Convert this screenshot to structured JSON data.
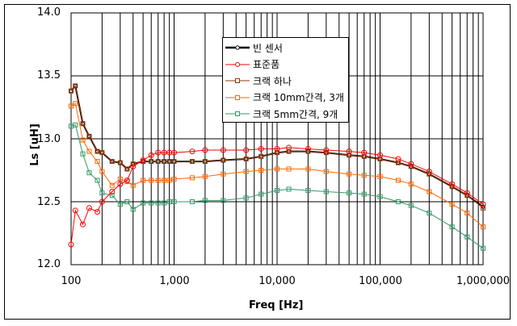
{
  "chart_data": {
    "type": "line",
    "title": "",
    "xlabel": "Freq [Hz]",
    "ylabel": "Ls [uH]",
    "xscale": "log",
    "xlim": [
      100,
      1000000
    ],
    "ylim": [
      12.0,
      14.0
    ],
    "xticks": [
      "100",
      "1,000",
      "10,000",
      "100,000",
      "1,000,000"
    ],
    "yticks": [
      "12.0",
      "12.5",
      "13.0",
      "13.5",
      "14.0"
    ],
    "grid": true,
    "legend_position": "top-center (inside plot)",
    "x": [
      100,
      110,
      130,
      150,
      180,
      200,
      250,
      300,
      350,
      400,
      500,
      600,
      700,
      800,
      900,
      1000,
      1500,
      2000,
      3000,
      5000,
      7000,
      10000,
      13000,
      20000,
      30000,
      50000,
      70000,
      100000,
      150000,
      200000,
      300000,
      500000,
      700000,
      1000000
    ],
    "series": [
      {
        "name": "빈 센서",
        "color": "#000000",
        "marker": "diamond",
        "values": [
          13.38,
          13.42,
          13.12,
          13.02,
          12.9,
          12.89,
          12.82,
          12.81,
          12.76,
          12.8,
          12.82,
          12.82,
          12.82,
          12.82,
          12.82,
          12.82,
          12.82,
          12.82,
          12.83,
          12.84,
          12.86,
          12.89,
          12.9,
          12.9,
          12.89,
          12.87,
          12.86,
          12.84,
          12.81,
          12.78,
          12.72,
          12.62,
          12.55,
          12.46
        ]
      },
      {
        "name": "표준품",
        "color": "#ff0000",
        "marker": "circle",
        "values": [
          12.16,
          12.43,
          12.32,
          12.45,
          12.42,
          12.5,
          12.58,
          12.64,
          12.67,
          12.78,
          12.83,
          12.87,
          12.89,
          12.89,
          12.89,
          12.89,
          12.9,
          12.91,
          12.91,
          12.91,
          12.92,
          12.92,
          12.93,
          12.92,
          12.91,
          12.9,
          12.89,
          12.87,
          12.84,
          12.8,
          12.74,
          12.64,
          12.57,
          12.48
        ]
      },
      {
        "name": "크랙 하나",
        "color": "#993300",
        "marker": "square",
        "values": [
          13.38,
          13.42,
          13.12,
          13.02,
          12.9,
          12.89,
          12.82,
          12.81,
          12.76,
          12.8,
          12.82,
          12.82,
          12.82,
          12.82,
          12.82,
          12.82,
          12.82,
          12.82,
          12.83,
          12.84,
          12.86,
          12.89,
          12.9,
          12.9,
          12.89,
          12.87,
          12.86,
          12.84,
          12.81,
          12.78,
          12.72,
          12.62,
          12.55,
          12.45
        ]
      },
      {
        "name": "크랙 10mm간격, 3개",
        "color": "#ff6600",
        "marker": "square",
        "values": [
          13.26,
          13.28,
          12.99,
          12.9,
          12.82,
          12.74,
          12.63,
          12.68,
          12.66,
          12.63,
          12.67,
          12.67,
          12.67,
          12.67,
          12.67,
          12.68,
          12.69,
          12.7,
          12.72,
          12.74,
          12.75,
          12.76,
          12.76,
          12.76,
          12.74,
          12.72,
          12.71,
          12.7,
          12.67,
          12.64,
          12.58,
          12.48,
          12.41,
          12.3
        ]
      },
      {
        "name": "크랙 5mm간격, 9개",
        "color": "#339966",
        "marker": "square",
        "values": [
          13.1,
          13.11,
          12.88,
          12.73,
          12.67,
          12.57,
          12.55,
          12.48,
          12.5,
          12.44,
          12.49,
          12.49,
          12.49,
          12.49,
          12.5,
          12.5,
          12.5,
          12.51,
          12.51,
          12.53,
          12.56,
          12.59,
          12.6,
          12.59,
          12.58,
          12.57,
          12.56,
          12.54,
          12.5,
          12.47,
          12.41,
          12.3,
          12.22,
          12.13
        ]
      }
    ]
  },
  "axes": {
    "xlabel": "Freq [Hz]",
    "ylabel": "Ls [uH]",
    "yticks": [
      {
        "label": "14.0",
        "value": 14.0
      },
      {
        "label": "13.5",
        "value": 13.5
      },
      {
        "label": "13.0",
        "value": 13.0
      },
      {
        "label": "12.5",
        "value": 12.5
      },
      {
        "label": "12.0",
        "value": 12.0
      }
    ],
    "xticks": [
      {
        "label": "100",
        "value": 100
      },
      {
        "label": "1,000",
        "value": 1000
      },
      {
        "label": "10,000",
        "value": 10000
      },
      {
        "label": "100,000",
        "value": 100000
      },
      {
        "label": "1,000,000",
        "value": 1000000
      }
    ]
  },
  "legend": {
    "items": [
      {
        "label": "빈 센서",
        "color": "#000000"
      },
      {
        "label": "표준품",
        "color": "#ff0000"
      },
      {
        "label": "크랙 하나",
        "color": "#993300"
      },
      {
        "label": "크랙 10mm간격, 3개",
        "color": "#ff6600"
      },
      {
        "label": "크랙 5mm간격, 9개",
        "color": "#339966"
      }
    ]
  }
}
